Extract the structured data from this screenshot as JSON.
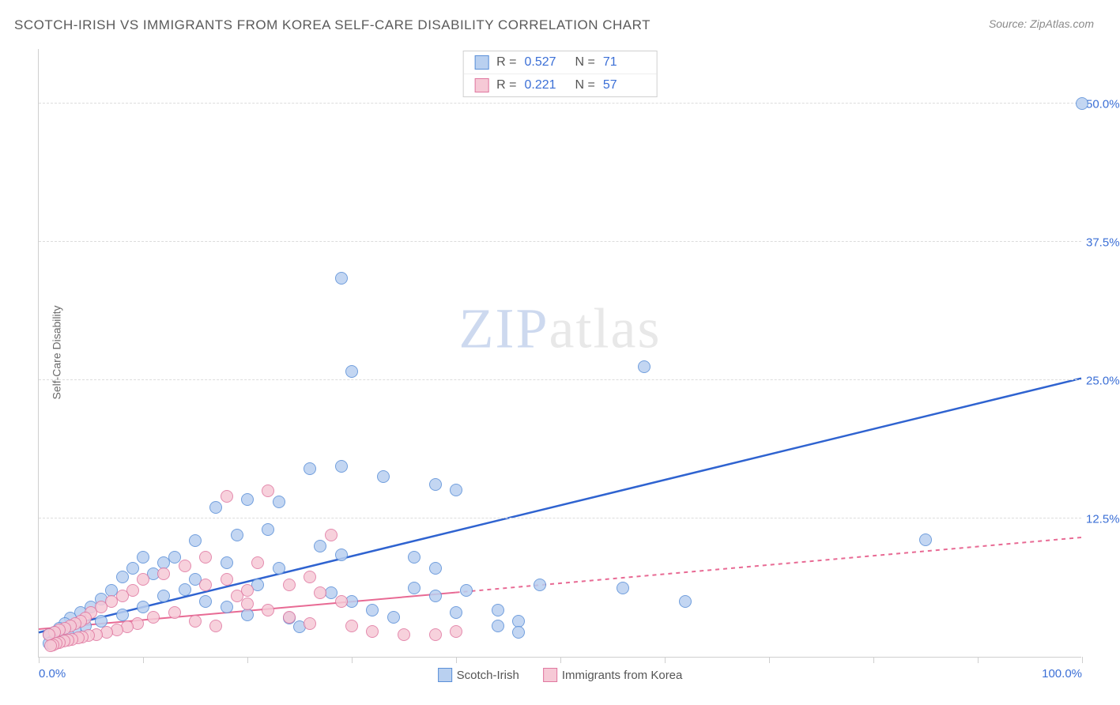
{
  "title": "SCOTCH-IRISH VS IMMIGRANTS FROM KOREA SELF-CARE DISABILITY CORRELATION CHART",
  "source": "Source: ZipAtlas.com",
  "ylabel": "Self-Care Disability",
  "watermark": {
    "strong": "ZIP",
    "rest": "atlas"
  },
  "chart": {
    "type": "scatter",
    "background_color": "#ffffff",
    "grid_color": "#dcdcdc",
    "axis_color": "#cfcfcf",
    "tick_label_color": "#3b6fd6",
    "xlim": [
      0,
      100
    ],
    "ylim": [
      0,
      55
    ],
    "y_gridlines": [
      12.5,
      25.0,
      37.5,
      50.0
    ],
    "y_tick_labels": [
      "12.5%",
      "25.0%",
      "37.5%",
      "50.0%"
    ],
    "x_ticks": [
      0,
      10,
      20,
      30,
      40,
      50,
      60,
      70,
      80,
      90,
      100
    ],
    "x_tick_labels": {
      "0": "0.0%",
      "100": "100.0%"
    },
    "marker_radius": 8,
    "series": [
      {
        "id": "scotch_irish",
        "label": "Scotch-Irish",
        "fill": "#b9d0f0",
        "stroke": "#5a8fd8",
        "R": "0.527",
        "N": "71",
        "trend": {
          "color": "#2f63d0",
          "width": 2.5,
          "dash": "none",
          "x1": 0,
          "y1": 2.2,
          "x2": 100,
          "y2": 25.2,
          "solid_until_x": 100
        },
        "points": [
          [
            100,
            50.0
          ],
          [
            29,
            34.2
          ],
          [
            30,
            25.8
          ],
          [
            58,
            26.2
          ],
          [
            26,
            17.0
          ],
          [
            29,
            17.2
          ],
          [
            38,
            15.6
          ],
          [
            40,
            15.1
          ],
          [
            33,
            16.3
          ],
          [
            23,
            14.0
          ],
          [
            17,
            13.5
          ],
          [
            20,
            14.2
          ],
          [
            15,
            10.5
          ],
          [
            19,
            11.0
          ],
          [
            22,
            11.5
          ],
          [
            27,
            10.0
          ],
          [
            29,
            9.2
          ],
          [
            36,
            9.0
          ],
          [
            38,
            8.0
          ],
          [
            41,
            6.0
          ],
          [
            44,
            4.2
          ],
          [
            46,
            3.2
          ],
          [
            48,
            6.5
          ],
          [
            56,
            6.2
          ],
          [
            62,
            5.0
          ],
          [
            85,
            10.6
          ],
          [
            13,
            9.0
          ],
          [
            12,
            8.5
          ],
          [
            11,
            7.5
          ],
          [
            10,
            9.0
          ],
          [
            9,
            8.0
          ],
          [
            8,
            7.2
          ],
          [
            7,
            6.0
          ],
          [
            6,
            5.2
          ],
          [
            5,
            4.5
          ],
          [
            4,
            4.0
          ],
          [
            3,
            3.5
          ],
          [
            2.5,
            3.0
          ],
          [
            2,
            2.6
          ],
          [
            1.5,
            2.2
          ],
          [
            1,
            2.0
          ],
          [
            14,
            6.1
          ],
          [
            16,
            5.0
          ],
          [
            18,
            4.5
          ],
          [
            20,
            3.8
          ],
          [
            24,
            3.5
          ],
          [
            25,
            2.7
          ],
          [
            28,
            5.8
          ],
          [
            30,
            5.0
          ],
          [
            32,
            4.2
          ],
          [
            34,
            3.6
          ],
          [
            36,
            6.2
          ],
          [
            38,
            5.5
          ],
          [
            40,
            4.0
          ],
          [
            44,
            2.8
          ],
          [
            46,
            2.2
          ],
          [
            23,
            8.0
          ],
          [
            21,
            6.5
          ],
          [
            18,
            8.5
          ],
          [
            15,
            7.0
          ],
          [
            12,
            5.5
          ],
          [
            10,
            4.5
          ],
          [
            8,
            3.8
          ],
          [
            6,
            3.2
          ],
          [
            4.5,
            2.8
          ],
          [
            3.5,
            2.4
          ],
          [
            2.8,
            2.0
          ],
          [
            2.2,
            1.8
          ],
          [
            1.8,
            1.6
          ],
          [
            1.4,
            1.4
          ],
          [
            1,
            1.2
          ]
        ]
      },
      {
        "id": "korea",
        "label": "Immigrants from Korea",
        "fill": "#f6c9d6",
        "stroke": "#e077a0",
        "R": "0.221",
        "N": "57",
        "trend": {
          "color": "#e86a94",
          "width": 2,
          "dash": "5,5",
          "x1": 0,
          "y1": 2.5,
          "x2": 100,
          "y2": 10.8,
          "solid_until_x": 40
        },
        "points": [
          [
            22,
            15.0
          ],
          [
            18,
            14.5
          ],
          [
            28,
            11.0
          ],
          [
            16,
            9.0
          ],
          [
            14,
            8.2
          ],
          [
            12,
            7.5
          ],
          [
            10,
            7.0
          ],
          [
            9,
            6.0
          ],
          [
            8,
            5.5
          ],
          [
            7,
            5.0
          ],
          [
            6,
            4.5
          ],
          [
            5,
            4.0
          ],
          [
            4.5,
            3.5
          ],
          [
            4,
            3.2
          ],
          [
            3.5,
            3.0
          ],
          [
            3,
            2.8
          ],
          [
            2.5,
            2.6
          ],
          [
            2,
            2.4
          ],
          [
            1.5,
            2.2
          ],
          [
            1,
            2.0
          ],
          [
            19,
            5.5
          ],
          [
            20,
            4.8
          ],
          [
            22,
            4.2
          ],
          [
            24,
            3.6
          ],
          [
            26,
            3.0
          ],
          [
            27,
            5.8
          ],
          [
            29,
            5.0
          ],
          [
            30,
            2.8
          ],
          [
            32,
            2.3
          ],
          [
            35,
            2.0
          ],
          [
            38,
            2.0
          ],
          [
            40,
            2.3
          ],
          [
            15,
            3.2
          ],
          [
            17,
            2.8
          ],
          [
            13,
            4.0
          ],
          [
            11,
            3.6
          ],
          [
            9.5,
            3.0
          ],
          [
            8.5,
            2.7
          ],
          [
            7.5,
            2.4
          ],
          [
            6.5,
            2.2
          ],
          [
            5.5,
            2.0
          ],
          [
            4.8,
            1.9
          ],
          [
            4.2,
            1.8
          ],
          [
            3.8,
            1.7
          ],
          [
            3.2,
            1.6
          ],
          [
            2.8,
            1.5
          ],
          [
            2.4,
            1.4
          ],
          [
            2.0,
            1.3
          ],
          [
            1.7,
            1.2
          ],
          [
            1.4,
            1.1
          ],
          [
            1.1,
            1.0
          ],
          [
            16,
            6.5
          ],
          [
            18,
            7.0
          ],
          [
            20,
            6.0
          ],
          [
            24,
            6.5
          ],
          [
            26,
            7.2
          ],
          [
            21,
            8.5
          ]
        ]
      }
    ],
    "bottom_legend": [
      {
        "label": "Scotch-Irish",
        "fill": "#b9d0f0",
        "stroke": "#5a8fd8"
      },
      {
        "label": "Immigrants from Korea",
        "fill": "#f6c9d6",
        "stroke": "#e077a0"
      }
    ]
  }
}
